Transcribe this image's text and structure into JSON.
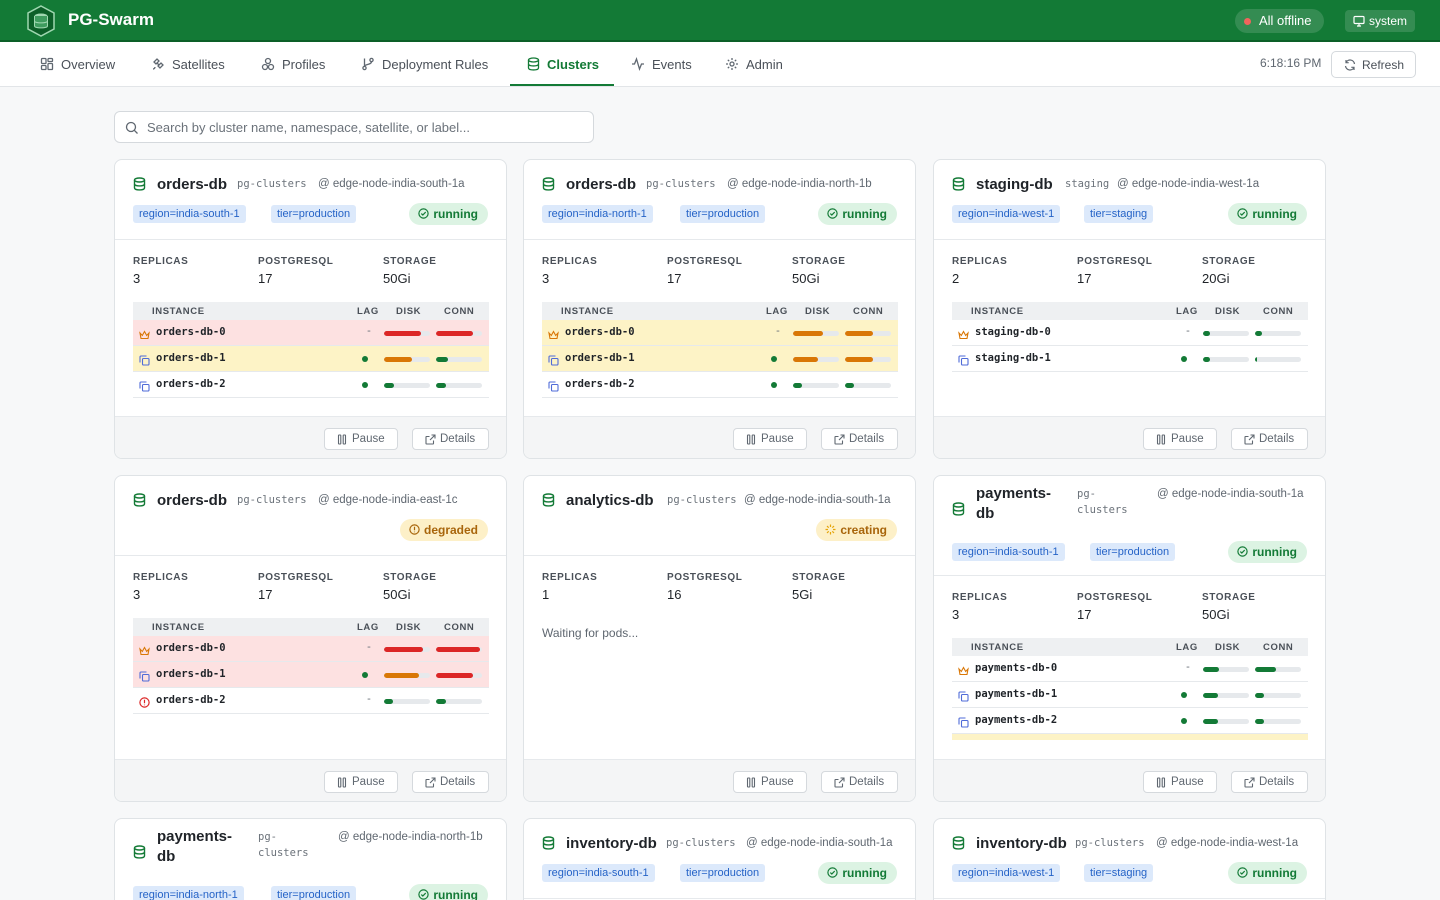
{
  "app": {
    "title": "PG-Swarm",
    "offline_label": "All offline",
    "user_label": "system"
  },
  "nav": {
    "tabs": [
      {
        "label": "Overview",
        "icon": "grid-icon"
      },
      {
        "label": "Satellites",
        "icon": "satellite-icon"
      },
      {
        "label": "Profiles",
        "icon": "profiles-icon"
      },
      {
        "label": "Deployment Rules",
        "icon": "git-branch-icon"
      },
      {
        "label": "Clusters",
        "icon": "database-icon",
        "active": true
      },
      {
        "label": "Events",
        "icon": "activity-icon"
      },
      {
        "label": "Admin",
        "icon": "gear-icon"
      }
    ],
    "clock": "6:18:16 PM",
    "refresh_label": "Refresh"
  },
  "search": {
    "placeholder": "Search by cluster name, namespace, satellite, or label..."
  },
  "labels": {
    "replicas": "REPLICAS",
    "postgresql": "POSTGRESQL",
    "storage": "STORAGE",
    "instance": "INSTANCE",
    "lag": "LAG",
    "disk": "DISK",
    "conn": "CONN",
    "pause": "Pause",
    "details": "Details",
    "waiting": "Waiting for pods..."
  },
  "colors": {
    "brand": "#137a36",
    "bar_red": "#dc2626",
    "bar_orange": "#d97706",
    "bar_green": "#137a36"
  },
  "clusters": [
    {
      "name": "orders-db",
      "namespace": "pg-clusters",
      "satellite": "@ edge-node-india-south-1a",
      "labels": [
        "region=india-south-1",
        "tier=production"
      ],
      "status": "running",
      "replicas": "3",
      "postgresql": "17",
      "storage": "50Gi",
      "instances": [
        {
          "name": "orders-db-0",
          "role": "primary",
          "lag": "-",
          "disk": 0.8,
          "conn": 0.8,
          "disk_color": "red",
          "conn_color": "red",
          "row": "red"
        },
        {
          "name": "orders-db-1",
          "role": "replica",
          "lag": "dot",
          "disk": 0.6,
          "conn": 0.25,
          "disk_color": "orange",
          "conn_color": "green",
          "row": "yellow"
        },
        {
          "name": "orders-db-2",
          "role": "replica",
          "lag": "dot",
          "disk": 0.22,
          "conn": 0.22,
          "disk_color": "green",
          "conn_color": "green",
          "row": ""
        }
      ]
    },
    {
      "name": "orders-db",
      "namespace": "pg-clusters",
      "satellite": "@ edge-node-india-north-1b",
      "labels": [
        "region=india-north-1",
        "tier=production"
      ],
      "status": "running",
      "replicas": "3",
      "postgresql": "17",
      "storage": "50Gi",
      "instances": [
        {
          "name": "orders-db-0",
          "role": "primary",
          "lag": "-",
          "disk": 0.65,
          "conn": 0.6,
          "disk_color": "orange",
          "conn_color": "orange",
          "row": "yellow"
        },
        {
          "name": "orders-db-1",
          "role": "replica",
          "lag": "dot",
          "disk": 0.55,
          "conn": 0.6,
          "disk_color": "orange",
          "conn_color": "orange",
          "row": "yellow"
        },
        {
          "name": "orders-db-2",
          "role": "replica",
          "lag": "dot",
          "disk": 0.2,
          "conn": 0.2,
          "disk_color": "green",
          "conn_color": "green",
          "row": ""
        }
      ]
    },
    {
      "name": "staging-db",
      "namespace": "staging",
      "satellite": "@ edge-node-india-west-1a",
      "labels": [
        "region=india-west-1",
        "tier=staging"
      ],
      "status": "running",
      "replicas": "2",
      "postgresql": "17",
      "storage": "20Gi",
      "instances": [
        {
          "name": "staging-db-0",
          "role": "primary",
          "lag": "-",
          "disk": 0.15,
          "conn": 0.15,
          "disk_color": "green",
          "conn_color": "green",
          "row": ""
        },
        {
          "name": "staging-db-1",
          "role": "replica",
          "lag": "dot",
          "disk": 0.15,
          "conn": 0.05,
          "disk_color": "green",
          "conn_color": "green",
          "row": ""
        }
      ]
    },
    {
      "name": "orders-db",
      "namespace": "pg-clusters",
      "satellite": "@ edge-node-india-east-1c",
      "labels": [],
      "status": "degraded",
      "replicas": "3",
      "postgresql": "17",
      "storage": "50Gi",
      "instances": [
        {
          "name": "orders-db-0",
          "role": "primary",
          "lag": "-",
          "disk": 0.85,
          "conn": 0.95,
          "disk_color": "red",
          "conn_color": "red",
          "row": "red"
        },
        {
          "name": "orders-db-1",
          "role": "replica",
          "lag": "dot",
          "disk": 0.75,
          "conn": 0.8,
          "disk_color": "orange",
          "conn_color": "red",
          "row": "red"
        },
        {
          "name": "orders-db-2",
          "role": "error",
          "lag": "-",
          "disk": 0.2,
          "conn": 0.22,
          "disk_color": "green",
          "conn_color": "green",
          "row": ""
        }
      ]
    },
    {
      "name": "analytics-db",
      "namespace": "pg-clusters",
      "satellite": "@ edge-node-india-south-1a",
      "labels": [],
      "status": "creating",
      "replicas": "1",
      "postgresql": "16",
      "storage": "5Gi",
      "instances": []
    },
    {
      "name": "payments-db",
      "namespace": "pg-clusters",
      "satellite": "@ edge-node-india-south-1a",
      "labels": [
        "region=india-south-1",
        "tier=production"
      ],
      "status": "running",
      "replicas": "3",
      "postgresql": "17",
      "storage": "50Gi",
      "instances": [
        {
          "name": "payments-db-0",
          "role": "primary",
          "lag": "-",
          "disk": 0.35,
          "conn": 0.45,
          "disk_color": "green",
          "conn_color": "green",
          "row": ""
        },
        {
          "name": "payments-db-1",
          "role": "replica",
          "lag": "dot",
          "disk": 0.32,
          "conn": 0.2,
          "disk_color": "green",
          "conn_color": "green",
          "row": ""
        },
        {
          "name": "payments-db-2",
          "role": "replica",
          "lag": "dot",
          "disk": 0.32,
          "conn": 0.2,
          "disk_color": "green",
          "conn_color": "green",
          "row": ""
        }
      ]
    },
    {
      "name": "payments-db",
      "namespace": "pg-clusters",
      "satellite": "@ edge-node-india-north-1b",
      "labels": [
        "region=india-north-1",
        "tier=production"
      ],
      "status": "running"
    },
    {
      "name": "inventory-db",
      "namespace": "pg-clusters",
      "satellite": "@ edge-node-india-south-1a",
      "labels": [
        "region=india-south-1",
        "tier=production"
      ],
      "status": "running"
    },
    {
      "name": "inventory-db",
      "namespace": "pg-clusters",
      "satellite": "@ edge-node-india-west-1a",
      "labels": [
        "region=india-west-1",
        "tier=staging"
      ],
      "status": "running"
    }
  ]
}
